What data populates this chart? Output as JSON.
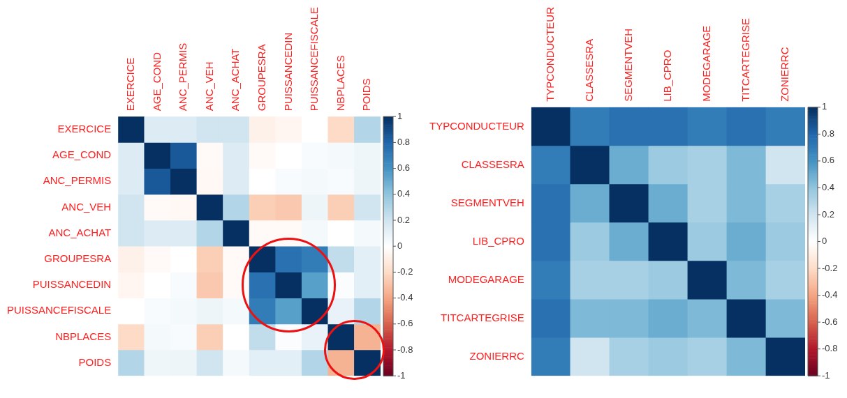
{
  "chart_data": [
    {
      "type": "heatmap",
      "categories": [
        "EXERCICE",
        "AGE_COND",
        "ANC_PERMIS",
        "ANC_VEH",
        "ANC_ACHAT",
        "GROUPESRA",
        "PUISSANCEDIN",
        "PUISSANCEFISCALE",
        "NBPLACES",
        "POIDS"
      ],
      "y_categories": [
        "EXERCICE",
        "AGE_COND",
        "ANC_PERMIS",
        "ANC_VEH",
        "ANC_ACHAT",
        "GROUPESRA",
        "PUISSANCEDIN",
        "PUISSANCEFISCALE",
        "NBPLACES",
        "POIDS"
      ],
      "cells": [
        [
          1,
          0.15,
          0.15,
          0.2,
          0.2,
          -0.08,
          -0.05,
          0,
          -0.2,
          0.3
        ],
        [
          0.15,
          1,
          0.85,
          -0.03,
          0.15,
          -0.03,
          0,
          0.03,
          0.05,
          0.07
        ],
        [
          0.15,
          0.85,
          1,
          -0.04,
          0.15,
          0,
          0.03,
          0.05,
          0.03,
          0.08
        ],
        [
          0.2,
          -0.03,
          -0.04,
          1,
          0.3,
          -0.25,
          -0.27,
          0.08,
          -0.25,
          0.2
        ],
        [
          0.2,
          0.15,
          0.15,
          0.3,
          1,
          -0.03,
          -0.03,
          0.05,
          0,
          0.05
        ],
        [
          -0.08,
          -0.03,
          0,
          -0.25,
          -0.03,
          1,
          0.75,
          0.7,
          0.25,
          0.12
        ],
        [
          -0.05,
          0,
          0.03,
          -0.27,
          -0.03,
          0.75,
          1,
          0.55,
          0.02,
          0.12
        ],
        [
          0,
          0.03,
          0.05,
          0.08,
          0.05,
          0.7,
          0.55,
          1,
          0.1,
          0.3
        ],
        [
          -0.2,
          0.05,
          0.03,
          -0.25,
          0,
          0.25,
          0.02,
          0.1,
          1,
          -0.35
        ],
        [
          0.3,
          0.07,
          0.08,
          0.2,
          0.05,
          0.12,
          0.12,
          0.3,
          -0.35,
          1
        ]
      ],
      "clim": [
        -1,
        1
      ],
      "cticks": [
        -1,
        -0.8,
        -0.6,
        -0.4,
        -0.2,
        0,
        0.2,
        0.4,
        0.6,
        0.8,
        1
      ]
    },
    {
      "type": "heatmap",
      "categories": [
        "TYPCONDUCTEUR",
        "CLASSESRA",
        "SEGMENTVEH",
        "LIB_CPRO",
        "MODEGARAGE",
        "TITCARTEGRISE",
        "ZONIERRC"
      ],
      "y_categories": [
        "TYPCONDUCTEUR",
        "CLASSESRA",
        "SEGMENTVEH",
        "LIB_CPRO",
        "MODEGARAGE",
        "TITCARTEGRISE",
        "ZONIERRC"
      ],
      "cells": [
        [
          1,
          0.7,
          0.75,
          0.75,
          0.7,
          0.75,
          0.7
        ],
        [
          0.7,
          1,
          0.5,
          0.37,
          0.33,
          0.45,
          0.2
        ],
        [
          0.75,
          0.5,
          1,
          0.5,
          0.33,
          0.45,
          0.33
        ],
        [
          0.75,
          0.37,
          0.5,
          1,
          0.37,
          0.5,
          0.37
        ],
        [
          0.7,
          0.33,
          0.33,
          0.37,
          1,
          0.45,
          0.33
        ],
        [
          0.75,
          0.45,
          0.45,
          0.5,
          0.45,
          1,
          0.45
        ],
        [
          0.7,
          0.2,
          0.33,
          0.37,
          0.33,
          0.45,
          1
        ]
      ],
      "clim": [
        -1,
        1
      ],
      "cticks": [
        -1,
        -0.8,
        -0.6,
        -0.4,
        -0.2,
        0,
        0.2,
        0.4,
        0.6,
        0.8,
        1
      ]
    }
  ]
}
